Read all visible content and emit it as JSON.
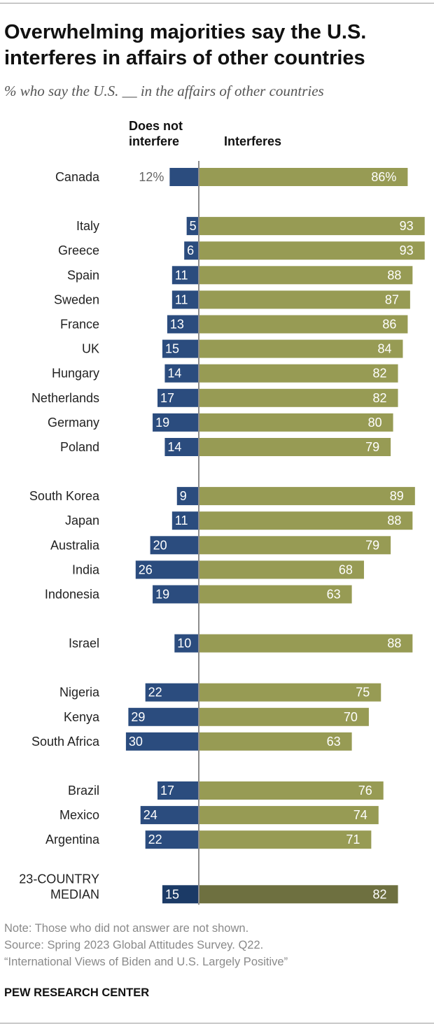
{
  "title": "Overwhelming majorities say the U.S. interferes in affairs of other countries",
  "subtitle": "% who say the U.S. __ in the affairs of other countries",
  "chart_data": {
    "type": "bar",
    "orientation": "horizontal-diverging",
    "series": [
      {
        "name": "Does not interfere",
        "color": "#2b4c7e"
      },
      {
        "name": "Interferes",
        "color": "#979b54"
      }
    ],
    "median_colors": {
      "Does not interfere": "#1b3a66",
      "Interferes": "#6e7040"
    },
    "rows": [
      {
        "country": "Canada",
        "not_interfere": 12,
        "interferes": 86,
        "not_label": "12%",
        "int_label": "86%",
        "group": 0
      },
      {
        "country": "Italy",
        "not_interfere": 5,
        "interferes": 93,
        "not_label": "5",
        "int_label": "93",
        "group": 1
      },
      {
        "country": "Greece",
        "not_interfere": 6,
        "interferes": 93,
        "not_label": "6",
        "int_label": "93",
        "group": 1
      },
      {
        "country": "Spain",
        "not_interfere": 11,
        "interferes": 88,
        "not_label": "11",
        "int_label": "88",
        "group": 1
      },
      {
        "country": "Sweden",
        "not_interfere": 11,
        "interferes": 87,
        "not_label": "11",
        "int_label": "87",
        "group": 1
      },
      {
        "country": "France",
        "not_interfere": 13,
        "interferes": 86,
        "not_label": "13",
        "int_label": "86",
        "group": 1
      },
      {
        "country": "UK",
        "not_interfere": 15,
        "interferes": 84,
        "not_label": "15",
        "int_label": "84",
        "group": 1
      },
      {
        "country": "Hungary",
        "not_interfere": 14,
        "interferes": 82,
        "not_label": "14",
        "int_label": "82",
        "group": 1
      },
      {
        "country": "Netherlands",
        "not_interfere": 17,
        "interferes": 82,
        "not_label": "17",
        "int_label": "82",
        "group": 1
      },
      {
        "country": "Germany",
        "not_interfere": 19,
        "interferes": 80,
        "not_label": "19",
        "int_label": "80",
        "group": 1
      },
      {
        "country": "Poland",
        "not_interfere": 14,
        "interferes": 79,
        "not_label": "14",
        "int_label": "79",
        "group": 1
      },
      {
        "country": "South Korea",
        "not_interfere": 9,
        "interferes": 89,
        "not_label": "9",
        "int_label": "89",
        "group": 2
      },
      {
        "country": "Japan",
        "not_interfere": 11,
        "interferes": 88,
        "not_label": "11",
        "int_label": "88",
        "group": 2
      },
      {
        "country": "Australia",
        "not_interfere": 20,
        "interferes": 79,
        "not_label": "20",
        "int_label": "79",
        "group": 2
      },
      {
        "country": "India",
        "not_interfere": 26,
        "interferes": 68,
        "not_label": "26",
        "int_label": "68",
        "group": 2
      },
      {
        "country": "Indonesia",
        "not_interfere": 19,
        "interferes": 63,
        "not_label": "19",
        "int_label": "63",
        "group": 2
      },
      {
        "country": "Israel",
        "not_interfere": 10,
        "interferes": 88,
        "not_label": "10",
        "int_label": "88",
        "group": 3
      },
      {
        "country": "Nigeria",
        "not_interfere": 22,
        "interferes": 75,
        "not_label": "22",
        "int_label": "75",
        "group": 4
      },
      {
        "country": "Kenya",
        "not_interfere": 29,
        "interferes": 70,
        "not_label": "29",
        "int_label": "70",
        "group": 4
      },
      {
        "country": "South Africa",
        "not_interfere": 30,
        "interferes": 63,
        "not_label": "30",
        "int_label": "63",
        "group": 4
      },
      {
        "country": "Brazil",
        "not_interfere": 17,
        "interferes": 76,
        "not_label": "17",
        "int_label": "76",
        "group": 5
      },
      {
        "country": "Mexico",
        "not_interfere": 24,
        "interferes": 74,
        "not_label": "24",
        "int_label": "74",
        "group": 5
      },
      {
        "country": "Argentina",
        "not_interfere": 22,
        "interferes": 71,
        "not_label": "22",
        "int_label": "71",
        "group": 5
      },
      {
        "country": "23-COUNTRY MEDIAN",
        "label_lines": [
          "23-COUNTRY",
          "MEDIAN"
        ],
        "not_interfere": 15,
        "interferes": 82,
        "not_label": "15",
        "int_label": "82",
        "group": 6,
        "median": true
      }
    ]
  },
  "notes": [
    "Note: Those who did not answer are not shown.",
    "Source: Spring 2023 Global Attitudes Survey. Q22.",
    "“International Views of Biden and U.S. Largely Positive”"
  ],
  "brand": "PEW RESEARCH CENTER"
}
